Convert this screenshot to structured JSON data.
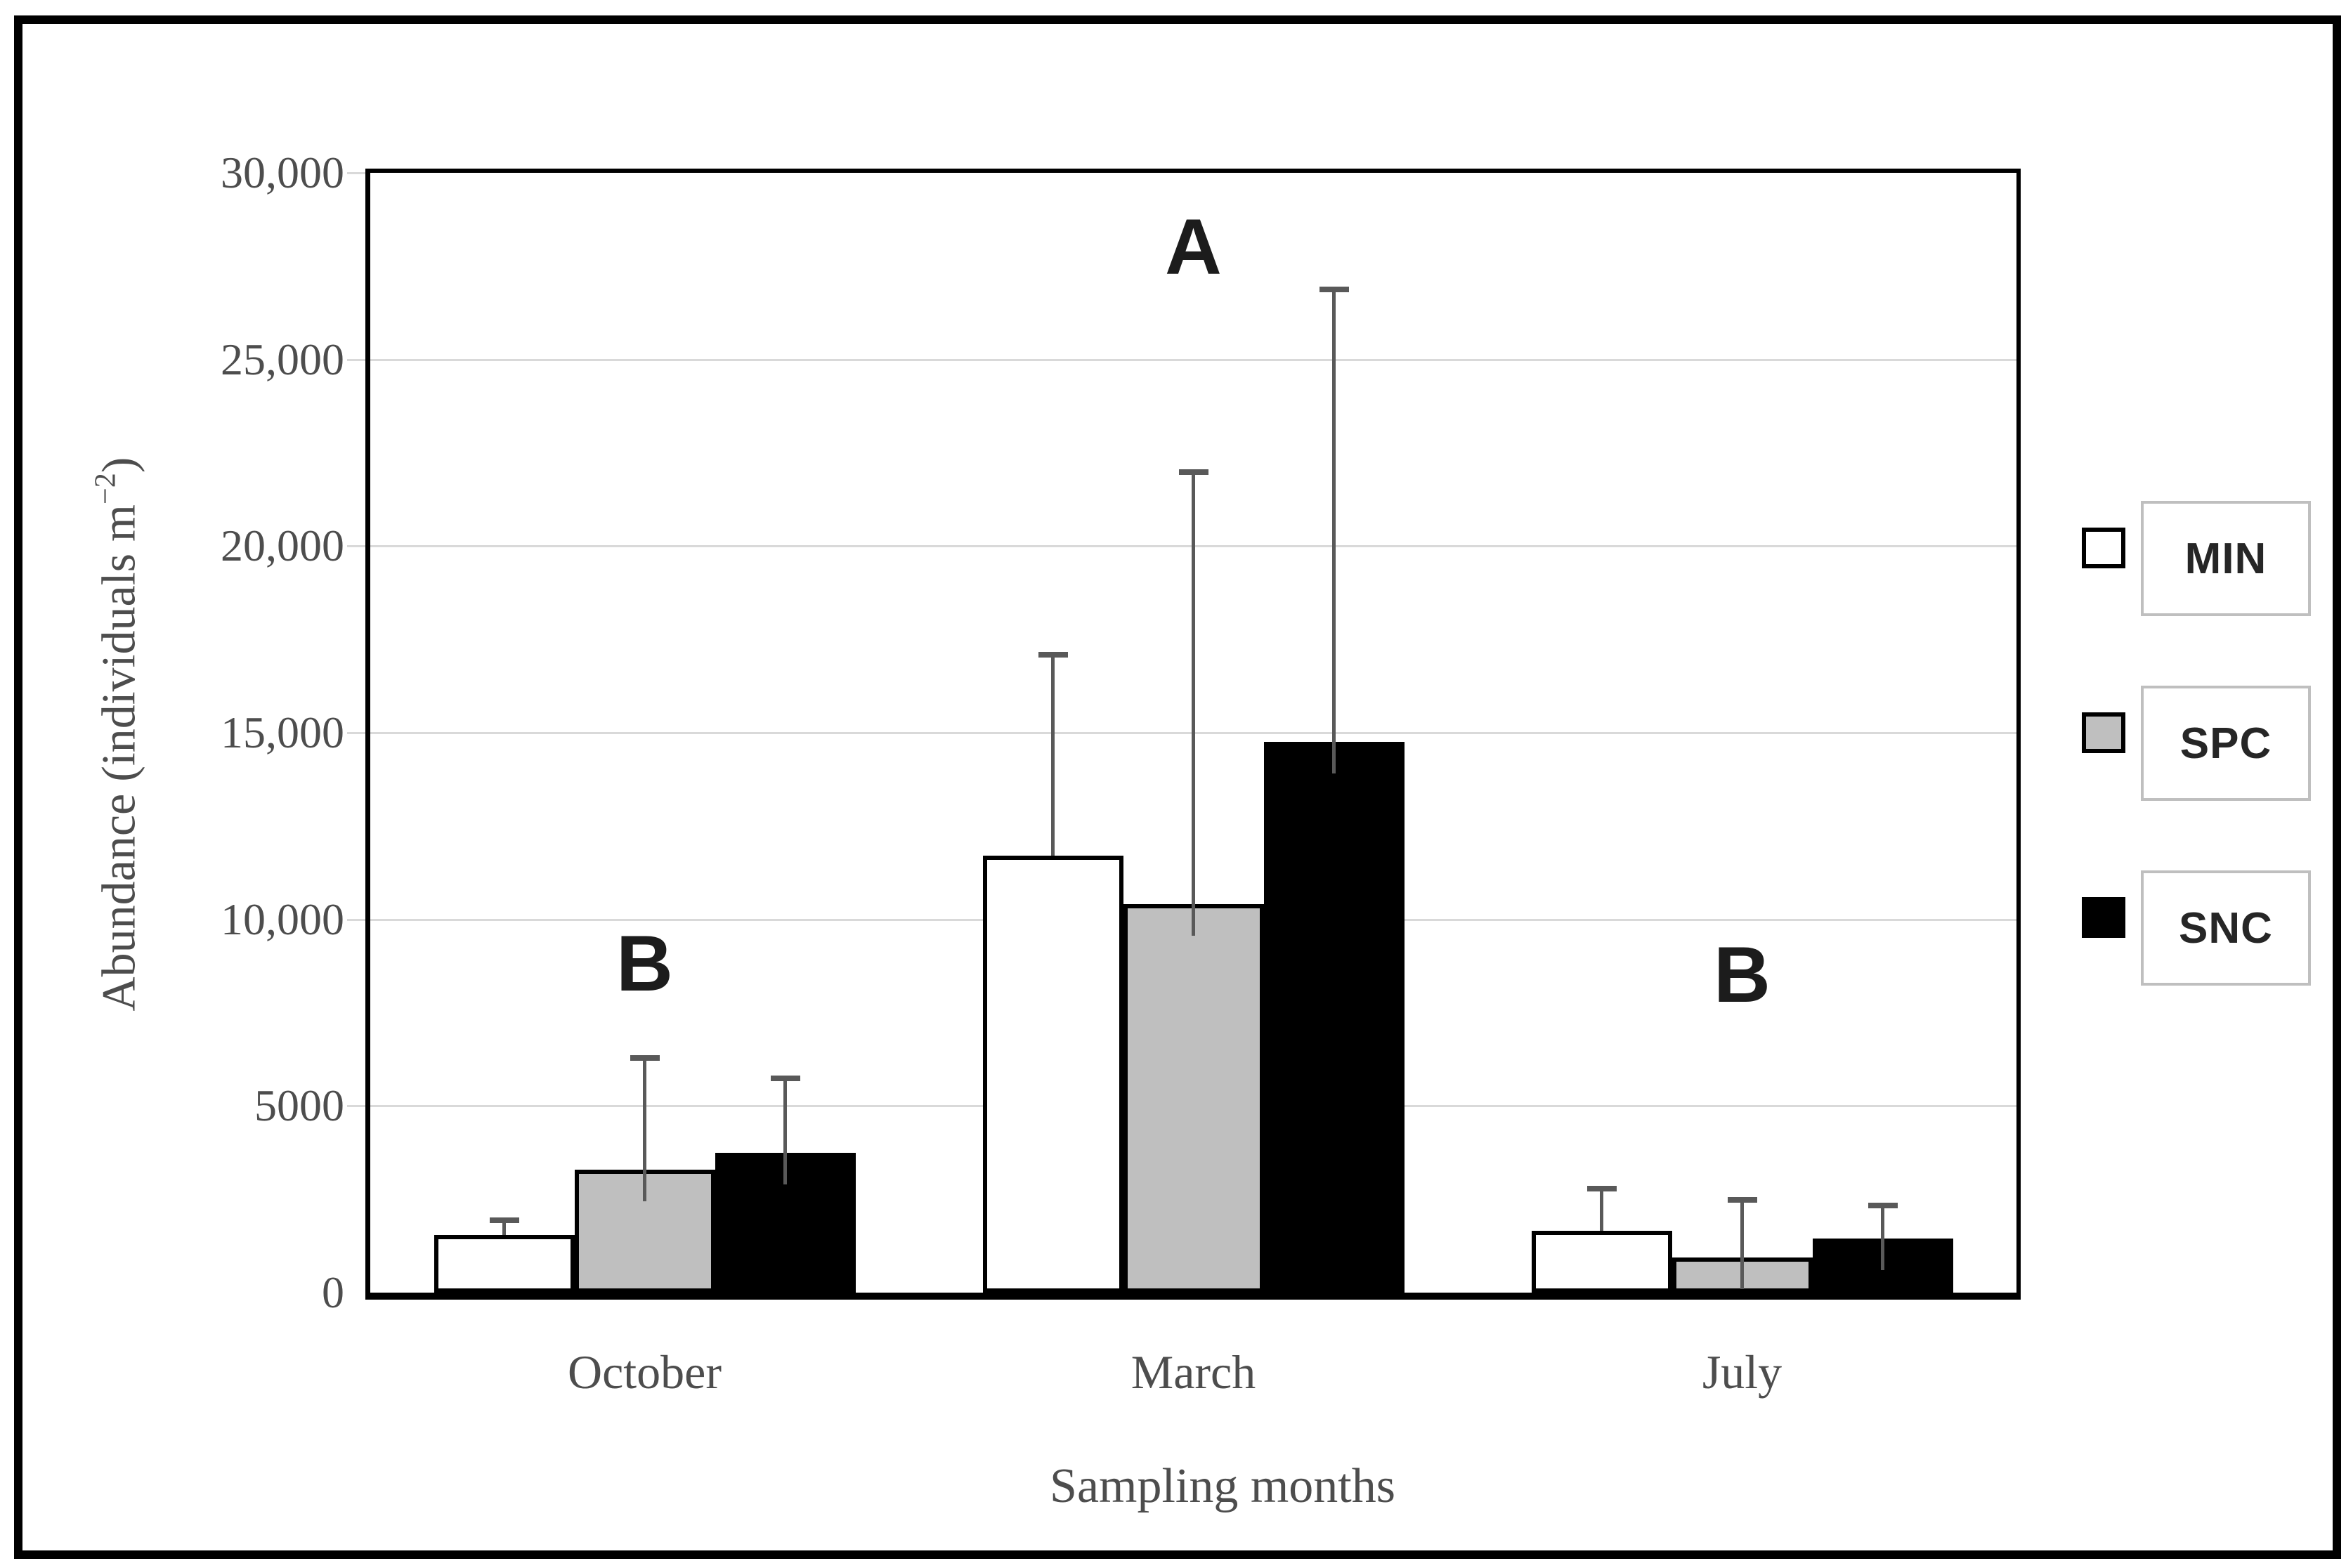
{
  "chart_data": {
    "type": "bar",
    "title": "",
    "categories": [
      "October",
      "March",
      "July"
    ],
    "series": [
      {
        "name": "MIN",
        "fill": "#ffffff",
        "outline": "#000000",
        "values": [
          1550,
          11700,
          1650
        ],
        "error_bar_tops": [
          1950,
          17100,
          2800
        ]
      },
      {
        "name": "SPC",
        "fill": "#bfbfbf",
        "outline": "#000000",
        "values": [
          3300,
          10400,
          950
        ],
        "error_bar_tops": [
          6300,
          22000,
          2500
        ]
      },
      {
        "name": "SNC",
        "fill": "#000000",
        "outline": "#000000",
        "values": [
          3750,
          14750,
          1450
        ],
        "error_bar_tops": [
          5750,
          26900,
          2350
        ]
      }
    ],
    "significance_letters": [
      {
        "category_index": 0,
        "label": "B",
        "value": 8800
      },
      {
        "category_index": 1,
        "label": "A",
        "value": 28000
      },
      {
        "category_index": 2,
        "label": "B",
        "value": 8500
      }
    ],
    "xlabel": "Sampling months",
    "ylabel": "Abundance (individuals m−2)",
    "ylabel_parts": {
      "prefix": "Abundance (individuals m",
      "superscript": "−2",
      "suffix": ")"
    },
    "ylim": [
      0,
      30000
    ],
    "yticks": [
      {
        "value": 0,
        "label": "0"
      },
      {
        "value": 5000,
        "label": "5000"
      },
      {
        "value": 10000,
        "label": "10,000"
      },
      {
        "value": 15000,
        "label": "15,000"
      },
      {
        "value": 20000,
        "label": "20,000"
      },
      {
        "value": 25000,
        "label": "25,000"
      },
      {
        "value": 30000,
        "label": "30,000"
      }
    ],
    "grid": true,
    "legend_position": "right-outside",
    "legend_labels": [
      "MIN",
      "SPC",
      "SNC"
    ]
  },
  "colors": {
    "bar_min": "#ffffff",
    "bar_spc": "#bfbfbf",
    "bar_snc": "#000000",
    "bar_outline": "#000000",
    "gridline": "#d9d9d9",
    "error_bar": "#595959",
    "axis_frame": "#000000",
    "text": "#4d4d4d",
    "sig_letter": "#1c1c1c",
    "legend_box_border": "#bfbfbf"
  }
}
